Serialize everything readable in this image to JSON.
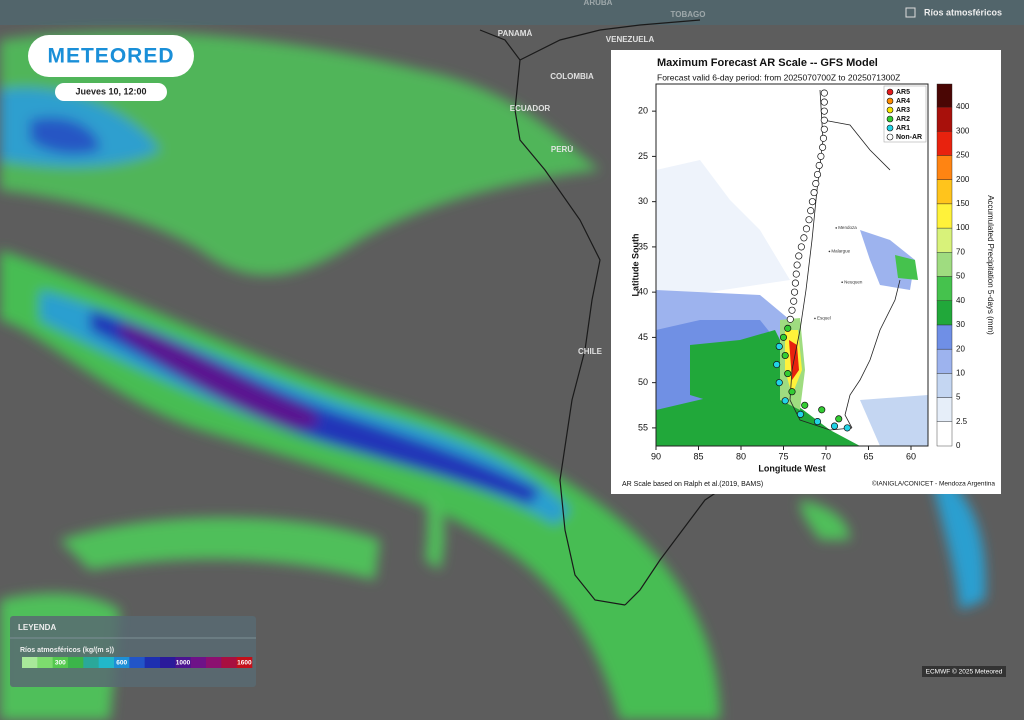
{
  "header": {
    "logo": "METEORED",
    "datetime": "Jueves 10, 12:00",
    "layer": "Ríos atmosféricos"
  },
  "map_labels": [
    "ARUBA",
    "TOBAGO",
    "PANAMÁ",
    "VENEZUELA",
    "COLOMBIA",
    "ECUADOR",
    "PERÚ",
    "CHILE"
  ],
  "legend": {
    "title": "LEYENDA",
    "label": "Ríos atmosféricos (kg/(m s))",
    "ticks": [
      300,
      600,
      1000,
      1600
    ],
    "colors": [
      "#a8e89a",
      "#7ddc6e",
      "#55c94f",
      "#3bb54a",
      "#2aa89a",
      "#22b7c9",
      "#1e8fd6",
      "#2255c8",
      "#1d2fb0",
      "#2a1a9a",
      "#4b1490",
      "#6e1288",
      "#8c1070",
      "#a80f40",
      "#c4101a"
    ]
  },
  "credit": "ECMWF © 2025 Meteored",
  "chart_data": {
    "type": "scatter",
    "title": "Maximum Forecast AR Scale -- GFS Model",
    "subtitle": "Forecast valid 6-day period: from 2025070700Z to 2025071300Z",
    "x_label": "Longitude West",
    "y_label": "Latitude South",
    "xlim": [
      90,
      58
    ],
    "ylim": [
      17,
      57
    ],
    "xticks": [
      90,
      85,
      80,
      75,
      70,
      65,
      60
    ],
    "yticks": [
      20,
      25,
      30,
      35,
      40,
      45,
      50,
      55
    ],
    "series": [
      {
        "name": "AR5",
        "color": "#e41a1c",
        "x": [],
        "y": []
      },
      {
        "name": "AR4",
        "color": "#ff8c00",
        "x": [],
        "y": []
      },
      {
        "name": "AR3",
        "color": "#f5e400",
        "x": [],
        "y": []
      },
      {
        "name": "AR2",
        "color": "#33cc33",
        "x": [
          74.5,
          75,
          74.8,
          74.5,
          74,
          72.5,
          70.5,
          68.5
        ],
        "y": [
          44,
          45,
          47,
          49,
          51,
          52.5,
          53,
          54
        ]
      },
      {
        "name": "AR1",
        "color": "#22d3e6",
        "x": [
          75.5,
          75.8,
          75.5,
          74.8,
          73,
          71,
          69,
          67.5
        ],
        "y": [
          46,
          48,
          50,
          52,
          53.5,
          54.3,
          54.8,
          55
        ]
      },
      {
        "name": "Non-AR",
        "color": "#ffffff",
        "x": [
          70.2,
          70.2,
          70.2,
          70.2,
          70.2,
          70.3,
          70.4,
          70.6,
          70.8,
          71,
          71.2,
          71.4,
          71.6,
          71.8,
          72,
          72.3,
          72.6,
          72.9,
          73.2,
          73.4,
          73.5,
          73.6,
          73.7,
          73.8,
          74,
          74.2
        ],
        "y": [
          18,
          19,
          20,
          21,
          22,
          23,
          24,
          25,
          26,
          27,
          28,
          29,
          30,
          31,
          32,
          33,
          34,
          35,
          36,
          37,
          38,
          39,
          40,
          41,
          42,
          43
        ]
      }
    ],
    "colorbar": {
      "label": "Accumulated Precipitation 5-days (mm)",
      "levels": [
        0,
        2.5,
        5,
        10,
        20,
        30,
        40,
        50,
        70,
        100,
        150,
        200,
        250,
        300,
        400
      ],
      "colors": [
        "#ffffff",
        "#e6eef9",
        "#c4d6f2",
        "#9db3ee",
        "#6f8fe6",
        "#21a83a",
        "#45c24d",
        "#9fdc80",
        "#d8f27a",
        "#fff23a",
        "#ffc41c",
        "#ff8412",
        "#e8220e",
        "#a8100b",
        "#4a0604"
      ]
    },
    "places": [
      {
        "name": "Mendoza",
        "lon": 68.8,
        "lat": 32.9
      },
      {
        "name": "Malargue",
        "lon": 69.6,
        "lat": 35.5
      },
      {
        "name": "Neuquen",
        "lon": 68.1,
        "lat": 38.9
      },
      {
        "name": "Esquel",
        "lon": 71.3,
        "lat": 42.9
      }
    ],
    "source_left": "AR Scale based on Ralph et al.(2019, BAMS)",
    "source_right": "©IANIGLA/CONICET - Mendoza Argentina"
  }
}
